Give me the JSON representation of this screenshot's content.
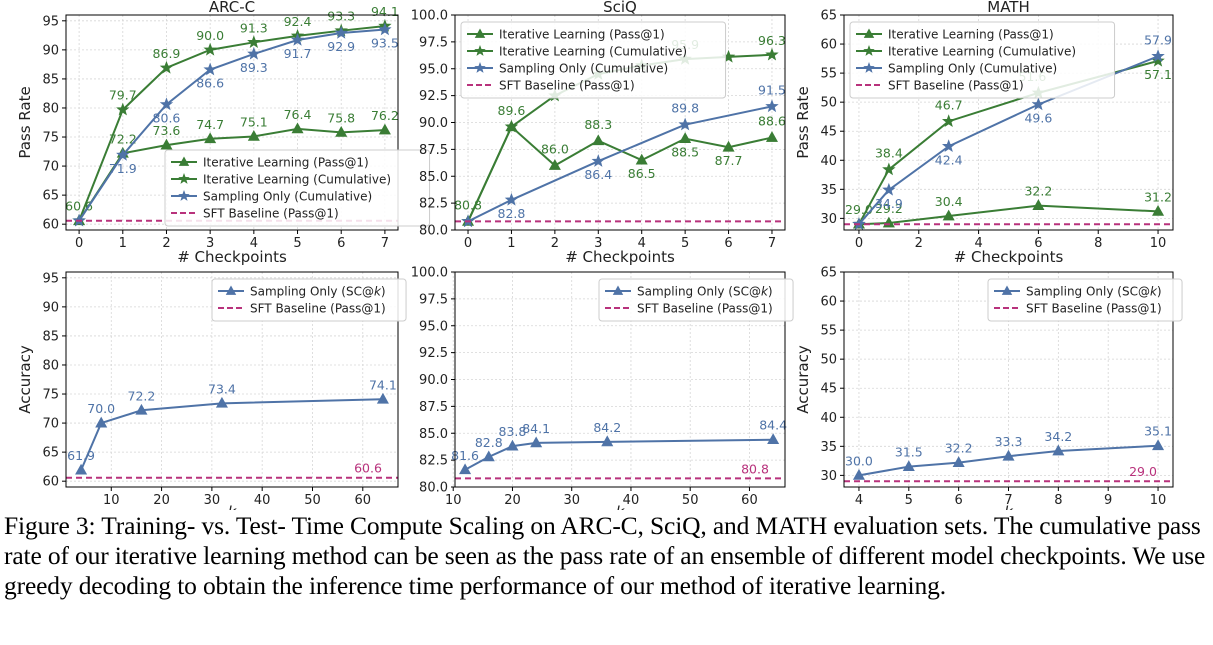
{
  "caption": "Figure 3: Training- vs. Test- Time Compute Scaling on ARC-C, SciQ, and MATH evaluation sets. The cumulative pass rate of our iterative learning method can be seen as the pass rate of an ensemble of different model checkpoints. We use greedy decoding to obtain the inference time performance of our method of iterative learning.",
  "colors": {
    "green": "#3a7d35",
    "blue": "#4f73a7",
    "magenta": "#b8327c",
    "grid": "#d6d6d6"
  },
  "chart_data": [
    {
      "id": "arc-top",
      "type": "line",
      "title": "ARC-C",
      "xlabel": "# Checkpoints",
      "ylabel": "Pass Rate",
      "xlim": [
        -0.3,
        7.3
      ],
      "ylim": [
        59,
        96
      ],
      "xticks": [
        0,
        1,
        2,
        3,
        4,
        5,
        6,
        7
      ],
      "yticks": [
        60,
        65,
        70,
        75,
        80,
        85,
        90,
        95
      ],
      "legend": "center-right",
      "series": [
        {
          "name": "Iterative Learning (Pass@1)",
          "marker": "triangle",
          "color": "green",
          "x": [
            0,
            1,
            2,
            3,
            4,
            5,
            6,
            7
          ],
          "y": [
            60.6,
            72.2,
            73.6,
            74.7,
            75.1,
            76.4,
            75.8,
            76.2
          ],
          "labels": [
            "60.6",
            "72.2",
            "73.6",
            "74.7",
            "75.1",
            "76.4",
            "75.8",
            "76.2"
          ],
          "label_pos": "above"
        },
        {
          "name": "Iterative Learning (Cumulative)",
          "marker": "star",
          "color": "green",
          "x": [
            0,
            1,
            2,
            3,
            4,
            5,
            6,
            7
          ],
          "y": [
            60.6,
            79.7,
            86.9,
            90.0,
            91.3,
            92.4,
            93.3,
            94.1
          ],
          "labels": [
            "",
            "79.7",
            "86.9",
            "90.0",
            "91.3",
            "92.4",
            "93.3",
            "94.1"
          ],
          "label_pos": "above"
        },
        {
          "name": "Sampling Only (Cumulative)",
          "marker": "star",
          "color": "blue",
          "x": [
            0,
            1,
            2,
            3,
            4,
            5,
            6,
            7
          ],
          "y": [
            60.6,
            71.9,
            80.6,
            86.6,
            89.3,
            91.7,
            92.9,
            93.5
          ],
          "labels": [
            "",
            "71.9",
            "80.6",
            "86.6",
            "89.3",
            "91.7",
            "92.9",
            "93.5"
          ],
          "label_pos": "below"
        },
        {
          "name": "SFT Baseline (Pass@1)",
          "type": "hline",
          "color": "magenta",
          "y": 60.6
        }
      ]
    },
    {
      "id": "sciq-top",
      "type": "line",
      "title": "SciQ",
      "xlabel": "# Checkpoints",
      "ylabel": "",
      "xlim": [
        -0.3,
        7.3
      ],
      "ylim": [
        80,
        100
      ],
      "xticks": [
        0,
        1,
        2,
        3,
        4,
        5,
        6,
        7
      ],
      "yticks": [
        80.0,
        82.5,
        85.0,
        87.5,
        90.0,
        92.5,
        95.0,
        97.5,
        100.0
      ],
      "legend": "upper-left",
      "series": [
        {
          "name": "Iterative Learning (Pass@1)",
          "marker": "triangle",
          "color": "green",
          "x": [
            0,
            1,
            2,
            3,
            4,
            5,
            6,
            7
          ],
          "y": [
            80.8,
            89.6,
            86.0,
            88.3,
            86.5,
            88.5,
            87.7,
            88.6
          ],
          "labels": [
            "80.8",
            "89.6",
            "86.0",
            "88.3",
            "86.5",
            "88.5",
            "87.7",
            "88.6"
          ],
          "label_pos": "mixed"
        },
        {
          "name": "Iterative Learning (Cumulative)",
          "marker": "star",
          "color": "green",
          "x": [
            0,
            1,
            2,
            3,
            4,
            5,
            6,
            7
          ],
          "y": [
            80.8,
            89.6,
            92.5,
            94.5,
            95.3,
            95.9,
            96.1,
            96.3
          ],
          "labels": [
            "",
            "",
            "",
            "",
            "",
            "95.9",
            "",
            "96.3"
          ],
          "label_pos": "above"
        },
        {
          "name": "Sampling Only (Cumulative)",
          "marker": "star",
          "color": "blue",
          "x": [
            0,
            1,
            3,
            5,
            7
          ],
          "y": [
            80.8,
            82.8,
            86.4,
            89.8,
            91.5
          ],
          "labels": [
            "",
            "82.8",
            "86.4",
            "89.8",
            "91.5"
          ],
          "label_pos": "mixed"
        },
        {
          "name": "SFT Baseline (Pass@1)",
          "type": "hline",
          "color": "magenta",
          "y": 80.8
        }
      ]
    },
    {
      "id": "math-top",
      "type": "line",
      "title": "MATH",
      "xlabel": "# Checkpoints",
      "ylabel": "Pass Rate",
      "xlim": [
        -0.5,
        10.5
      ],
      "ylim": [
        28,
        65
      ],
      "xticks": [
        0,
        2,
        4,
        6,
        8,
        10
      ],
      "yticks": [
        30,
        35,
        40,
        45,
        50,
        55,
        60,
        65
      ],
      "legend": "upper-left",
      "series": [
        {
          "name": "Iterative Learning (Pass@1)",
          "marker": "triangle",
          "color": "green",
          "x": [
            0,
            1,
            3,
            6,
            10
          ],
          "y": [
            29.0,
            29.2,
            30.4,
            32.2,
            31.2
          ],
          "labels": [
            "29.0",
            "29.2",
            "30.4",
            "32.2",
            "31.2"
          ],
          "label_pos": "above"
        },
        {
          "name": "Iterative Learning (Cumulative)",
          "marker": "star",
          "color": "green",
          "x": [
            0,
            1,
            3,
            6,
            10
          ],
          "y": [
            29.0,
            38.4,
            46.7,
            51.6,
            57.1
          ],
          "labels": [
            "",
            "38.4",
            "46.7",
            "51.6",
            "57.1"
          ],
          "label_pos": "mixed"
        },
        {
          "name": "Sampling Only (Cumulative)",
          "marker": "star",
          "color": "blue",
          "x": [
            0,
            1,
            3,
            6,
            10
          ],
          "y": [
            29.0,
            34.9,
            42.4,
            49.6,
            57.9
          ],
          "labels": [
            "",
            "34.9",
            "42.4",
            "49.6",
            "57.9"
          ],
          "label_pos": "mixed"
        },
        {
          "name": "SFT Baseline (Pass@1)",
          "type": "hline",
          "color": "magenta",
          "y": 29.0
        }
      ]
    },
    {
      "id": "arc-bottom",
      "type": "line",
      "xlabel": "k",
      "ylabel": "Accuracy",
      "xlim": [
        1,
        67
      ],
      "ylim": [
        59,
        96
      ],
      "xticks": [
        10,
        20,
        30,
        40,
        50,
        60
      ],
      "yticks": [
        60,
        65,
        70,
        75,
        80,
        85,
        90,
        95
      ],
      "legend": "upper-right",
      "series": [
        {
          "name": "Sampling Only (SC@k)",
          "marker": "triangle",
          "color": "blue",
          "x": [
            4,
            8,
            16,
            32,
            64
          ],
          "y": [
            61.9,
            70.0,
            72.2,
            73.4,
            74.1
          ],
          "labels": [
            "61.9",
            "70.0",
            "72.2",
            "73.4",
            "74.1"
          ],
          "label_pos": "above"
        },
        {
          "name": "SFT Baseline (Pass@1)",
          "type": "hline",
          "color": "magenta",
          "y": 60.6,
          "label": "60.6"
        }
      ]
    },
    {
      "id": "sciq-bottom",
      "type": "line",
      "xlabel": "k",
      "ylabel": "",
      "xlim": [
        10.3,
        66
      ],
      "ylim": [
        80,
        100
      ],
      "xticks": [
        10,
        20,
        30,
        40,
        50,
        60
      ],
      "yticks": [
        80.0,
        82.5,
        85.0,
        87.5,
        90.0,
        92.5,
        95.0,
        97.5,
        100.0
      ],
      "legend": "upper-right",
      "series": [
        {
          "name": "Sampling Only (SC@k)",
          "marker": "triangle",
          "color": "blue",
          "x": [
            12,
            16,
            20,
            24,
            36,
            64
          ],
          "y": [
            81.6,
            82.8,
            83.8,
            84.1,
            84.2,
            84.4
          ],
          "labels": [
            "81.6",
            "82.8",
            "83.8",
            "84.1",
            "84.2",
            "84.4"
          ],
          "label_pos": "above"
        },
        {
          "name": "SFT Baseline (Pass@1)",
          "type": "hline",
          "color": "magenta",
          "y": 80.8,
          "label": "80.8"
        }
      ]
    },
    {
      "id": "math-bottom",
      "type": "line",
      "xlabel": "k",
      "ylabel": "Accuracy",
      "xlim": [
        3.7,
        10.3
      ],
      "ylim": [
        28,
        65
      ],
      "xticks": [
        4,
        5,
        6,
        7,
        8,
        9,
        10
      ],
      "yticks": [
        30,
        35,
        40,
        45,
        50,
        55,
        60,
        65
      ],
      "legend": "upper-right",
      "series": [
        {
          "name": "Sampling Only (SC@k)",
          "marker": "triangle",
          "color": "blue",
          "x": [
            4,
            5,
            6,
            7,
            8,
            10
          ],
          "y": [
            30.0,
            31.5,
            32.2,
            33.3,
            34.2,
            35.1
          ],
          "labels": [
            "30.0",
            "31.5",
            "32.2",
            "33.3",
            "34.2",
            "35.1"
          ],
          "label_pos": "above"
        },
        {
          "name": "SFT Baseline (Pass@1)",
          "type": "hline",
          "color": "magenta",
          "y": 29.0,
          "label": "29.0"
        }
      ]
    }
  ]
}
